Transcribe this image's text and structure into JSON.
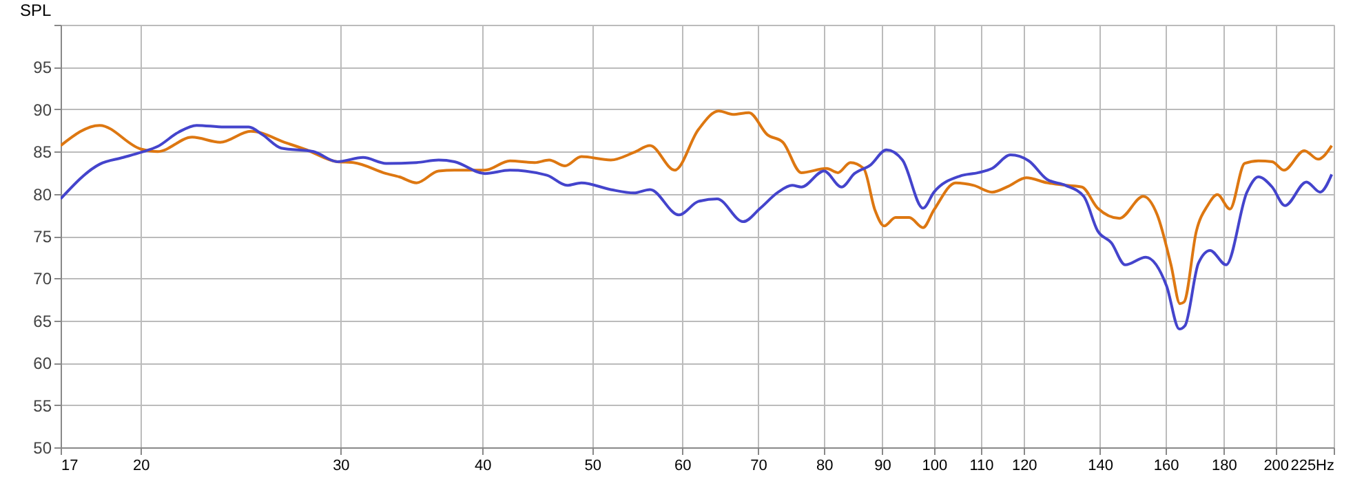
{
  "chart_data": {
    "type": "line",
    "ylabel": "SPL",
    "log": "x",
    "grid": true,
    "marker": "none",
    "line_style": "solid",
    "xlim": [
      17,
      225
    ],
    "ylim": [
      50,
      100
    ],
    "xticks": [
      17,
      20,
      30,
      40,
      50,
      60,
      70,
      80,
      90,
      100,
      110,
      120,
      140,
      160,
      180,
      200,
      {
        "value": 225,
        "label": "225Hz"
      }
    ],
    "yticks": [
      50,
      55,
      60,
      65,
      70,
      75,
      80,
      85,
      90,
      95,
      {
        "value": 100,
        "label": null
      }
    ],
    "series": [
      {
        "color": "#dd7711",
        "x": [
          17,
          18.4,
          20,
          20.7,
          22.2,
          23.5,
          25.0,
          26.9,
          28.0,
          29.8,
          30.8,
          32.9,
          33.8,
          35.0,
          36.6,
          37.8,
          40.2,
          42.3,
          44.5,
          45.8,
          47.3,
          48.9,
          51.9,
          54.4,
          56.2,
          59.1,
          62.0,
          64.6,
          66.5,
          68.7,
          71.3,
          73.6,
          76.4,
          80.4,
          82.3,
          84.4,
          86.7,
          88.7,
          90.4,
          92.5,
          95.1,
          97.8,
          100,
          104.5,
          108.4,
          112.5,
          116.3,
          120.6,
          125.8,
          130.6,
          135.0,
          139.4,
          145.7,
          152.9,
          157.3,
          161.8,
          164.7,
          166.1,
          170.3,
          174.2,
          177.7,
          182.3,
          187.8,
          193.1,
          198.6,
          203.4,
          212.0,
          218.0,
          224.1
        ],
        "values": [
          85.7,
          88.1,
          85.3,
          85.0,
          86.7,
          86.1,
          87.4,
          86.0,
          85.2,
          83.8,
          83.7,
          82.4,
          82.0,
          81.3,
          82.7,
          82.8,
          82.8,
          83.9,
          83.7,
          84.0,
          83.3,
          84.4,
          84.0,
          84.9,
          85.7,
          82.8,
          87.6,
          89.8,
          89.4,
          89.6,
          87.0,
          86.1,
          82.5,
          83.0,
          82.5,
          83.7,
          83.0,
          78.1,
          76.2,
          77.2,
          77.2,
          76.0,
          78.1,
          81.3,
          81.0,
          80.2,
          80.9,
          81.9,
          81.3,
          81.0,
          80.8,
          78.3,
          77.1,
          79.7,
          77.5,
          71.5,
          67.0,
          67.2,
          75.6,
          78.6,
          79.9,
          78.2,
          83.6,
          83.9,
          83.8,
          82.8,
          85.1,
          84.1,
          85.7
        ]
      },
      {
        "color": "#4444cc",
        "x": [
          17,
          18.4,
          19.3,
          20,
          20.7,
          21.6,
          22.4,
          23.7,
          24.9,
          25.6,
          26.6,
          28.4,
          29.8,
          31.4,
          32.9,
          35.0,
          36.6,
          37.8,
          40.2,
          42.3,
          45.6,
          47.5,
          48.9,
          51.9,
          54.4,
          56.2,
          59.6,
          62.0,
          64.4,
          67.9,
          70.3,
          72.9,
          75.0,
          76.4,
          80.0,
          82.9,
          85.1,
          87.9,
          90.8,
          93.8,
          97.8,
          100,
          105.4,
          109.4,
          112.5,
          116.8,
          121.2,
          125.8,
          130.6,
          135.5,
          139.4,
          143.3,
          147.4,
          153.7,
          160.3,
          164.5,
          166.4,
          171.0,
          175.1,
          180.9,
          188.7,
          193.1,
          198.6,
          203.8,
          212.9,
          218.9,
          224.1
        ],
        "values": [
          79.4,
          83.5,
          84.3,
          84.9,
          85.6,
          87.3,
          88.1,
          87.9,
          87.9,
          87.0,
          85.4,
          85.0,
          83.8,
          84.3,
          83.6,
          83.7,
          84.0,
          83.8,
          82.4,
          82.8,
          82.2,
          81.0,
          81.3,
          80.5,
          80.1,
          80.5,
          77.5,
          79.1,
          79.4,
          76.7,
          78.3,
          80.2,
          81.0,
          80.8,
          82.7,
          80.8,
          82.4,
          83.4,
          85.2,
          84.0,
          78.3,
          80.2,
          82.1,
          82.5,
          83.0,
          84.6,
          83.9,
          81.7,
          81.0,
          79.7,
          75.6,
          74.2,
          71.6,
          72.5,
          69.1,
          64.0,
          64.4,
          71.8,
          73.3,
          71.6,
          80.2,
          82.0,
          80.8,
          78.6,
          81.4,
          80.2,
          82.3
        ]
      }
    ]
  }
}
